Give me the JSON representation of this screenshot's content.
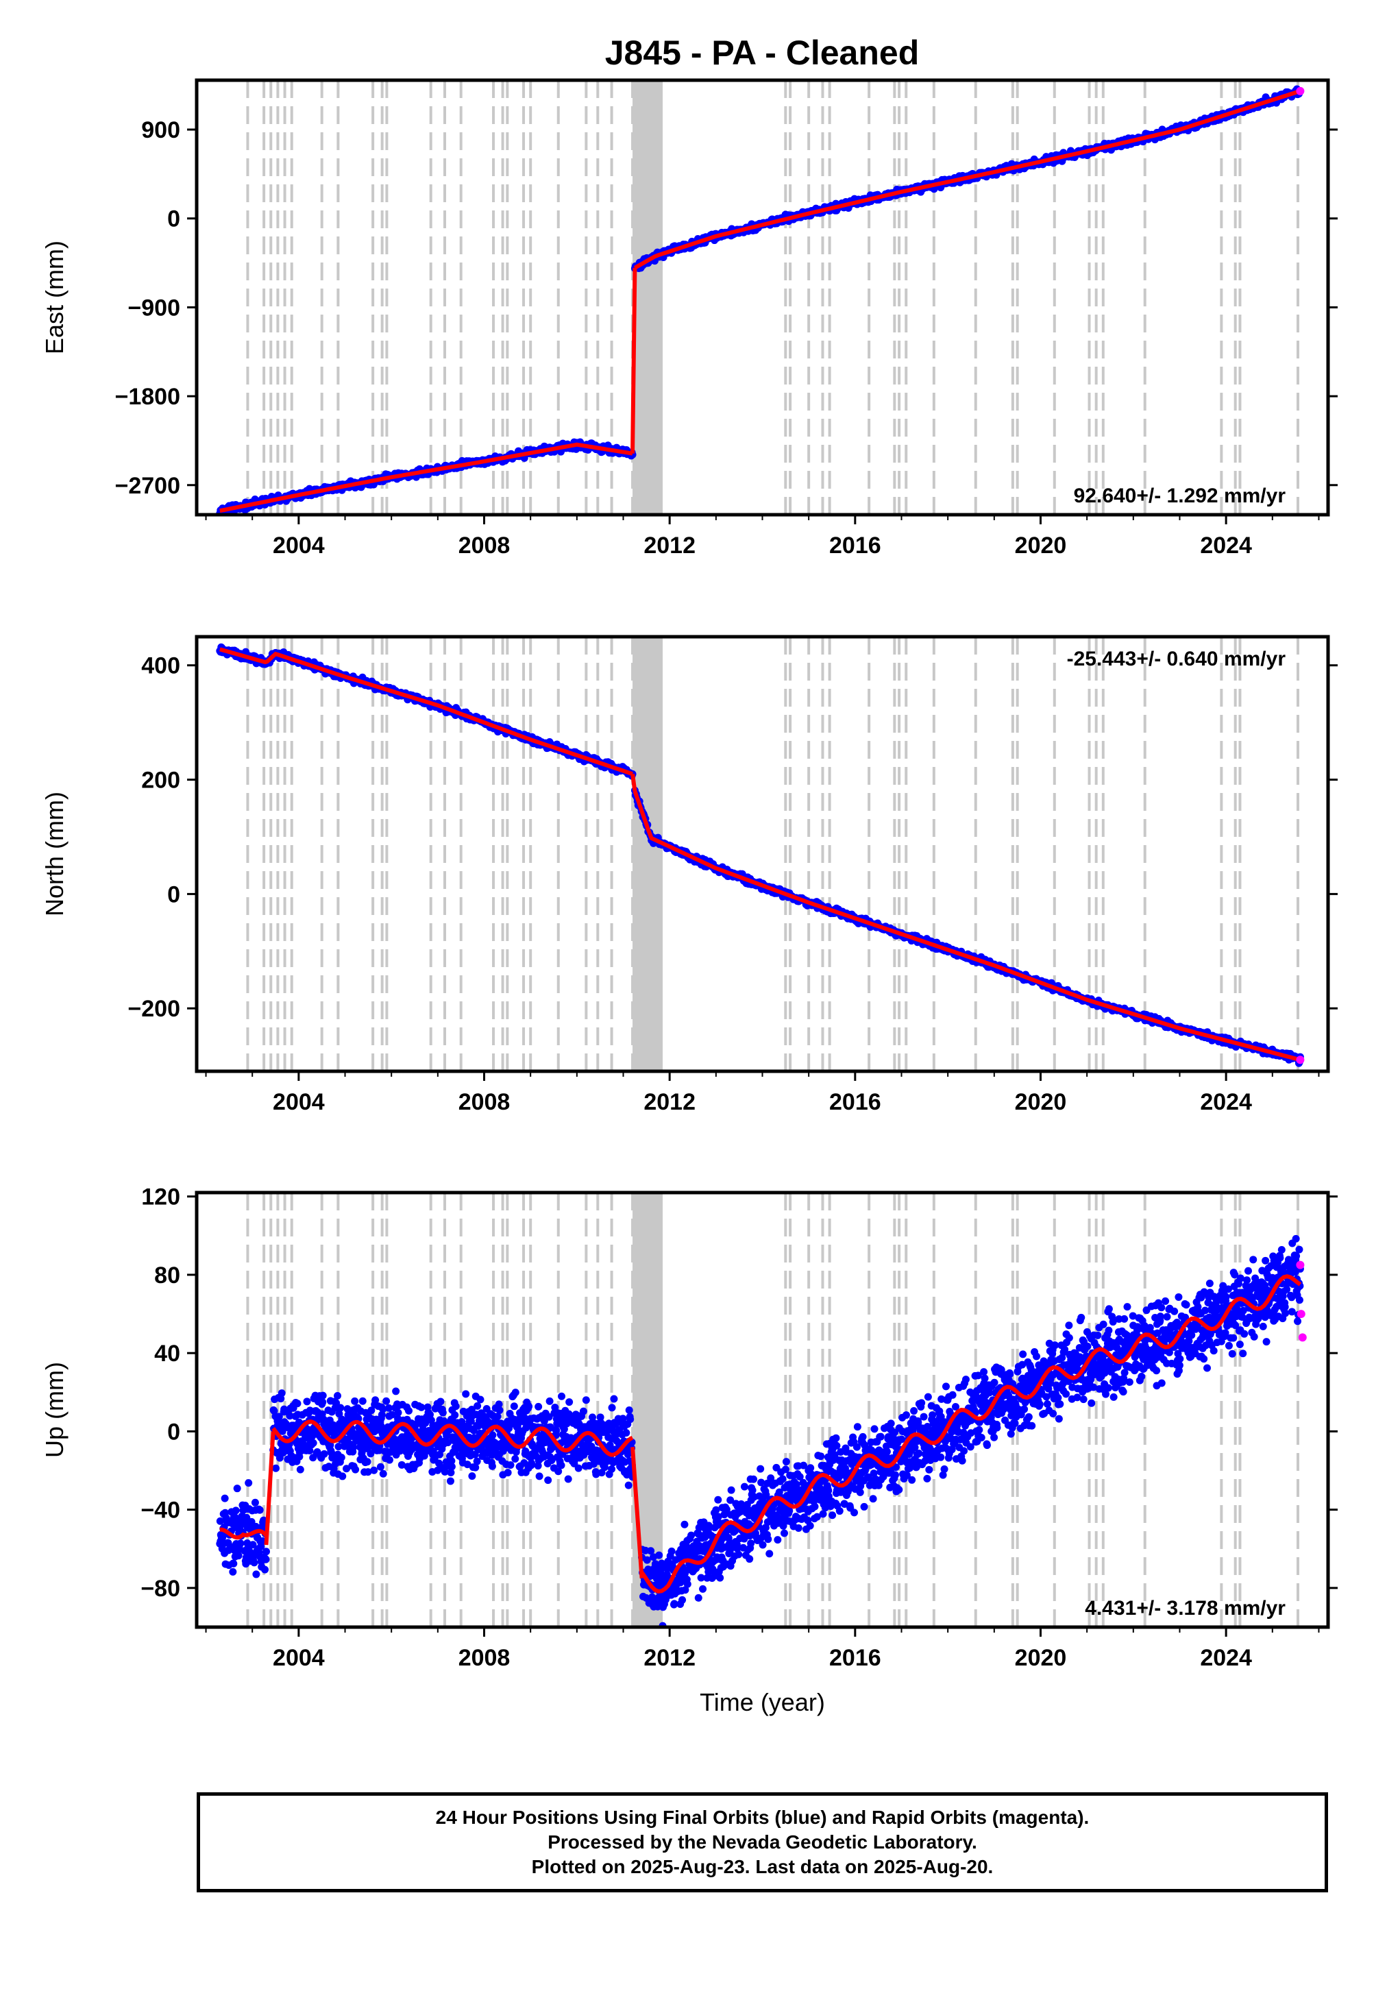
{
  "title": "J845  - PA - Cleaned",
  "colors": {
    "final_points": "#0000ff",
    "rapid_points": "#ff00ff",
    "model_line": "#ff0000",
    "event_lines": "#c8c8c8",
    "frame": "#000000"
  },
  "chart_data": [
    {
      "type": "scatter",
      "component": "East",
      "ylabel": "East (mm)",
      "xlabel": "",
      "xlim": [
        2001.8,
        2026.2
      ],
      "ylim": [
        -3000,
        1400
      ],
      "yticks": [
        900,
        0,
        -900,
        -1800,
        -2700
      ],
      "xticks": [
        2004,
        2008,
        2012,
        2016,
        2020,
        2024
      ],
      "rate_label": "92.640+/- 1.292 mm/yr",
      "rate_position": "bottom-right",
      "series": [
        {
          "segment": "pre-2011",
          "x": [
            2002.3,
            2004.0,
            2006.0,
            2008.0,
            2010.0,
            2011.2
          ],
          "y": [
            -2960,
            -2800,
            -2620,
            -2460,
            -2290,
            -2380
          ]
        },
        {
          "segment": "post-2011",
          "x": [
            2011.25,
            2011.7,
            2013.0,
            2015.0,
            2017.0,
            2019.0,
            2021.0,
            2023.0,
            2025.6
          ],
          "y": [
            -500,
            -380,
            -180,
            50,
            270,
            470,
            680,
            900,
            1290
          ]
        }
      ],
      "rapid_points": {
        "x": [
          2025.6
        ],
        "y": [
          1290
        ]
      }
    },
    {
      "type": "scatter",
      "component": "North",
      "ylabel": "North (mm)",
      "xlabel": "",
      "xlim": [
        2001.8,
        2026.2
      ],
      "ylim": [
        -310,
        450
      ],
      "yticks": [
        400,
        200,
        0,
        -200
      ],
      "xticks": [
        2004,
        2008,
        2012,
        2016,
        2020,
        2024
      ],
      "rate_label": "-25.443+/- 0.640 mm/yr",
      "rate_position": "top-right",
      "series": [
        {
          "segment": "pre-2011",
          "x": [
            2002.3,
            2003.3,
            2003.5,
            2005.0,
            2007.0,
            2009.0,
            2011.2
          ],
          "y": [
            428,
            405,
            420,
            380,
            330,
            270,
            210
          ]
        },
        {
          "segment": "post-2011",
          "x": [
            2011.25,
            2011.6,
            2013.0,
            2015.0,
            2017.0,
            2019.0,
            2021.0,
            2023.0,
            2025.6
          ],
          "y": [
            180,
            98,
            45,
            -15,
            -70,
            -125,
            -185,
            -235,
            -290
          ]
        }
      ],
      "rapid_points": {
        "x": [
          2025.6
        ],
        "y": [
          -290
        ]
      }
    },
    {
      "type": "scatter",
      "component": "Up",
      "ylabel": "Up (mm)",
      "xlabel": "Time (year)",
      "xlim": [
        2001.8,
        2026.2
      ],
      "ylim": [
        -100,
        122
      ],
      "yticks": [
        120,
        80,
        40,
        0,
        -40,
        -80
      ],
      "xticks": [
        2004,
        2008,
        2012,
        2016,
        2020,
        2024
      ],
      "rate_label": "4.431+/- 3.178 mm/yr",
      "rate_position": "bottom-right",
      "series": [
        {
          "segment": "pre-2003.4",
          "x": [
            2002.3,
            2002.8,
            2003.3
          ],
          "y": [
            -55,
            -48,
            -58
          ]
        },
        {
          "segment": "2003.4-2011",
          "x": [
            2003.45,
            2005.0,
            2007.0,
            2009.0,
            2011.2
          ],
          "y": [
            0,
            0,
            -2,
            -3,
            -8
          ]
        },
        {
          "segment": "post-2011",
          "x": [
            2011.4,
            2012.0,
            2013.0,
            2015.0,
            2017.0,
            2019.0,
            2021.0,
            2023.0,
            2024.5,
            2025.6
          ],
          "y": [
            -75,
            -78,
            -55,
            -30,
            -10,
            15,
            35,
            50,
            65,
            78
          ]
        }
      ],
      "rapid_points": {
        "x": [
          2025.6,
          2025.62,
          2025.65
        ],
        "y": [
          85,
          60,
          48
        ]
      }
    }
  ],
  "event_years": [
    2002.9,
    2003.25,
    2003.4,
    2003.55,
    2003.7,
    2003.85,
    2004.5,
    2004.85,
    2005.6,
    2005.8,
    2005.9,
    2006.85,
    2007.15,
    2007.5,
    2008.2,
    2008.4,
    2008.5,
    2008.85,
    2009.0,
    2009.6,
    2010.2,
    2010.45,
    2010.75,
    2011.2,
    2014.5,
    2014.6,
    2015.0,
    2015.3,
    2015.45,
    2016.3,
    2016.85,
    2016.95,
    2017.1,
    2017.7,
    2018.6,
    2019.4,
    2019.5,
    2020.3,
    2021.05,
    2021.2,
    2021.35,
    2022.25,
    2023.9,
    2024.2,
    2024.3,
    2025.55
  ],
  "dense_event_span": [
    2011.2,
    2011.85
  ],
  "footer": {
    "line1": "24 Hour Positions Using Final Orbits (blue) and Rapid Orbits (magenta).",
    "line2": "Processed by the Nevada Geodetic Laboratory.",
    "line3": "Plotted on 2025-Aug-23. Last data on 2025-Aug-20."
  }
}
